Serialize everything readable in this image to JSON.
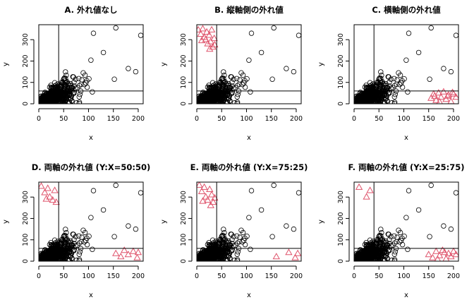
{
  "figure": {
    "panel_count": 6,
    "layout": "2 rows x 3 columns"
  },
  "colors": {
    "inlier": "#000000",
    "outlier": "#DF536B",
    "frame": "#000000",
    "background": "#ffffff"
  },
  "chart_data": [
    {
      "type": "scatter",
      "title": "A. 外れ値なし",
      "xlabel": "x",
      "ylabel": "y",
      "xlim": [
        0,
        210
      ],
      "ylim": [
        0,
        370
      ],
      "xticks": [
        0,
        50,
        100,
        150,
        200
      ],
      "yticks": [
        0,
        100,
        200,
        300
      ],
      "reference_lines": {
        "vertical_x": 40,
        "horizontal_y": 60
      },
      "inlier_marker": "open circle",
      "outlier_marker": "none",
      "outliers": []
    },
    {
      "type": "scatter",
      "title": "B. 縦軸側の外れ値",
      "xlabel": "x",
      "ylabel": "y",
      "xlim": [
        0,
        210
      ],
      "ylim": [
        0,
        370
      ],
      "xticks": [
        0,
        50,
        100,
        150,
        200
      ],
      "yticks": [
        0,
        100,
        200,
        300
      ],
      "reference_lines": {
        "vertical_x": 40,
        "horizontal_y": 60
      },
      "inlier_marker": "open circle",
      "outlier_marker": "open triangle",
      "outliers": [
        [
          3,
          345
        ],
        [
          8,
          325
        ],
        [
          12,
          350
        ],
        [
          15,
          310
        ],
        [
          18,
          300
        ],
        [
          20,
          335
        ],
        [
          22,
          280
        ],
        [
          25,
          320
        ],
        [
          28,
          290
        ],
        [
          30,
          345
        ],
        [
          32,
          265
        ],
        [
          35,
          305
        ],
        [
          36,
          275
        ],
        [
          10,
          295
        ],
        [
          26,
          255
        ]
      ]
    },
    {
      "type": "scatter",
      "title": "C. 横軸側の外れ値",
      "xlabel": "x",
      "ylabel": "y",
      "xlim": [
        0,
        210
      ],
      "ylim": [
        0,
        370
      ],
      "xticks": [
        0,
        50,
        100,
        150,
        200
      ],
      "yticks": [
        0,
        100,
        200,
        300
      ],
      "reference_lines": {
        "vertical_x": 40,
        "horizontal_y": 60
      },
      "inlier_marker": "open circle",
      "outlier_marker": "open triangle",
      "outliers": [
        [
          155,
          25
        ],
        [
          160,
          45
        ],
        [
          165,
          15
        ],
        [
          170,
          50
        ],
        [
          175,
          30
        ],
        [
          180,
          55
        ],
        [
          185,
          20
        ],
        [
          190,
          40
        ],
        [
          195,
          10
        ],
        [
          200,
          45
        ],
        [
          205,
          30
        ],
        [
          172,
          8
        ],
        [
          188,
          35
        ],
        [
          198,
          52
        ],
        [
          162,
          35
        ]
      ]
    },
    {
      "type": "scatter",
      "title": "D. 両軸の外れ値 (Y:X=50:50)",
      "xlabel": "x",
      "ylabel": "y",
      "xlim": [
        0,
        210
      ],
      "ylim": [
        0,
        370
      ],
      "xticks": [
        0,
        50,
        100,
        150,
        200
      ],
      "yticks": [
        0,
        100,
        200,
        300
      ],
      "reference_lines": {
        "vertical_x": 40,
        "horizontal_y": 60
      },
      "inlier_marker": "open circle",
      "outlier_marker": "open triangle",
      "outliers": [
        [
          5,
          350
        ],
        [
          12,
          320
        ],
        [
          18,
          340
        ],
        [
          22,
          300
        ],
        [
          28,
          285
        ],
        [
          32,
          330
        ],
        [
          35,
          275
        ],
        [
          15,
          290
        ],
        [
          155,
          35
        ],
        [
          165,
          20
        ],
        [
          172,
          50
        ],
        [
          180,
          30
        ],
        [
          190,
          45
        ],
        [
          198,
          15
        ],
        [
          200,
          40
        ]
      ]
    },
    {
      "type": "scatter",
      "title": "E. 両軸の外れ値 (Y:X=75:25)",
      "xlabel": "x",
      "ylabel": "y",
      "xlim": [
        0,
        210
      ],
      "ylim": [
        0,
        370
      ],
      "xticks": [
        0,
        50,
        100,
        150,
        200
      ],
      "yticks": [
        0,
        100,
        200,
        300
      ],
      "reference_lines": {
        "vertical_x": 40,
        "horizontal_y": 60
      },
      "inlier_marker": "open circle",
      "outlier_marker": "open triangle",
      "outliers": [
        [
          5,
          355
        ],
        [
          10,
          325
        ],
        [
          15,
          345
        ],
        [
          18,
          300
        ],
        [
          22,
          285
        ],
        [
          26,
          335
        ],
        [
          30,
          310
        ],
        [
          33,
          275
        ],
        [
          36,
          295
        ],
        [
          12,
          280
        ],
        [
          28,
          260
        ],
        [
          160,
          20
        ],
        [
          185,
          40
        ],
        [
          198,
          15
        ],
        [
          203,
          35
        ]
      ]
    },
    {
      "type": "scatter",
      "title": "F. 両軸の外れ値 (Y:X=25:75)",
      "xlabel": "x",
      "ylabel": "y",
      "xlim": [
        0,
        210
      ],
      "ylim": [
        0,
        370
      ],
      "xticks": [
        0,
        50,
        100,
        150,
        200
      ],
      "yticks": [
        0,
        100,
        200,
        300
      ],
      "reference_lines": {
        "vertical_x": 40,
        "horizontal_y": 60
      },
      "inlier_marker": "open circle",
      "outlier_marker": "open triangle",
      "outliers": [
        [
          10,
          345
        ],
        [
          25,
          300
        ],
        [
          32,
          330
        ],
        [
          150,
          30
        ],
        [
          158,
          15
        ],
        [
          165,
          45
        ],
        [
          172,
          25
        ],
        [
          178,
          50
        ],
        [
          185,
          10
        ],
        [
          190,
          35
        ],
        [
          195,
          20
        ],
        [
          200,
          45
        ],
        [
          205,
          30
        ],
        [
          168,
          8
        ],
        [
          182,
          40
        ]
      ]
    }
  ]
}
